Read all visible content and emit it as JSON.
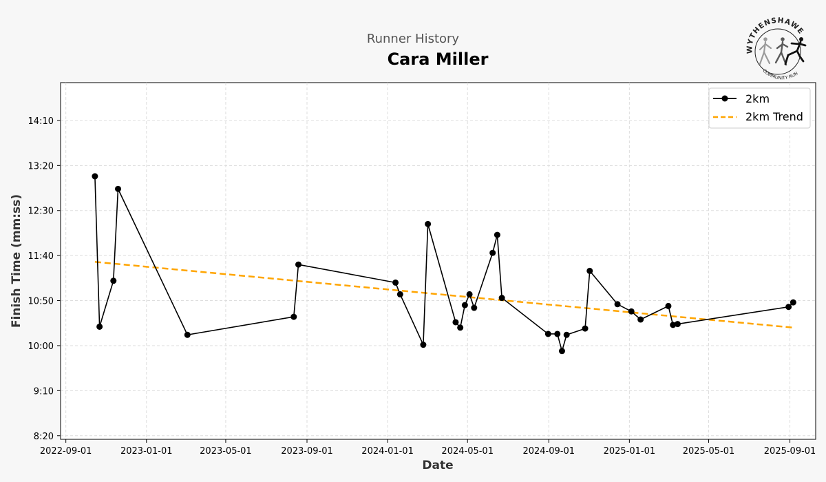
{
  "header": {
    "subtitle": "Runner History",
    "title": "Cara Miller"
  },
  "logo": {
    "text_top": "WYTHENSHAWE",
    "text_bottom": "COMMUNITY RUN"
  },
  "colors": {
    "series": "#000000",
    "trend": "#ffa500",
    "grid": "#dddddd",
    "background": "#f7f7f7",
    "plot_bg": "#ffffff"
  },
  "chart_data": {
    "type": "line",
    "title": "Cara Miller",
    "subtitle": "Runner History",
    "xlabel": "Date",
    "ylabel": "Finish Time (mm:ss)",
    "x_type": "date",
    "xlim": [
      "2022-08-24",
      "2025-10-10"
    ],
    "ylim": [
      "8:16",
      "14:52"
    ],
    "x_ticks": [
      "2022-09-01",
      "2023-01-01",
      "2023-05-01",
      "2023-09-01",
      "2024-01-01",
      "2024-05-01",
      "2024-09-01",
      "2025-01-01",
      "2025-05-01",
      "2025-09-01"
    ],
    "y_ticks": [
      "8:20",
      "9:10",
      "10:00",
      "10:50",
      "11:40",
      "12:30",
      "13:20",
      "14:10"
    ],
    "grid": true,
    "legend_position": "top-right",
    "series": [
      {
        "name": "2km",
        "style": "solid-markers",
        "points": [
          {
            "x": "2022-10-15",
            "y": "13:08"
          },
          {
            "x": "2022-10-22",
            "y": "10:21"
          },
          {
            "x": "2022-11-12",
            "y": "11:12"
          },
          {
            "x": "2022-11-19",
            "y": "12:54"
          },
          {
            "x": "2023-03-04",
            "y": "10:12"
          },
          {
            "x": "2023-08-12",
            "y": "10:32"
          },
          {
            "x": "2023-08-19",
            "y": "11:30"
          },
          {
            "x": "2024-01-13",
            "y": "11:10"
          },
          {
            "x": "2024-01-20",
            "y": "10:57"
          },
          {
            "x": "2024-02-24",
            "y": "10:01"
          },
          {
            "x": "2024-03-02",
            "y": "12:15"
          },
          {
            "x": "2024-04-13",
            "y": "10:26"
          },
          {
            "x": "2024-04-20",
            "y": "10:20"
          },
          {
            "x": "2024-04-27",
            "y": "10:45"
          },
          {
            "x": "2024-05-04",
            "y": "10:57"
          },
          {
            "x": "2024-05-11",
            "y": "10:42"
          },
          {
            "x": "2024-06-08",
            "y": "11:43"
          },
          {
            "x": "2024-06-15",
            "y": "12:03"
          },
          {
            "x": "2024-06-22",
            "y": "10:53"
          },
          {
            "x": "2024-08-31",
            "y": "10:13"
          },
          {
            "x": "2024-09-14",
            "y": "10:13"
          },
          {
            "x": "2024-09-21",
            "y": "9:54"
          },
          {
            "x": "2024-09-28",
            "y": "10:12"
          },
          {
            "x": "2024-10-26",
            "y": "10:19"
          },
          {
            "x": "2024-11-02",
            "y": "11:23"
          },
          {
            "x": "2024-12-14",
            "y": "10:46"
          },
          {
            "x": "2025-01-04",
            "y": "10:38"
          },
          {
            "x": "2025-01-18",
            "y": "10:29"
          },
          {
            "x": "2025-03-01",
            "y": "10:44"
          },
          {
            "x": "2025-03-08",
            "y": "10:23"
          },
          {
            "x": "2025-03-15",
            "y": "10:24"
          },
          {
            "x": "2025-08-30",
            "y": "10:43"
          },
          {
            "x": "2025-09-06",
            "y": "10:48"
          }
        ]
      },
      {
        "name": "2km Trend",
        "style": "dashed",
        "points": [
          {
            "x": "2022-10-15",
            "y": "11:33"
          },
          {
            "x": "2025-09-06",
            "y": "10:20"
          }
        ]
      }
    ]
  }
}
